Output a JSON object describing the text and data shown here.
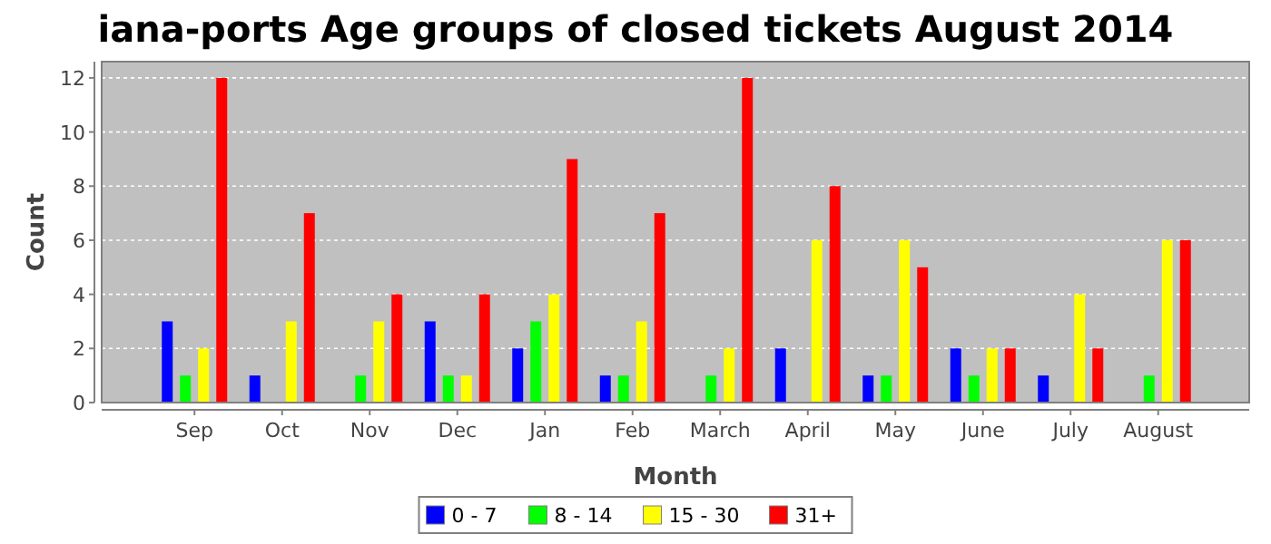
{
  "chart_data": {
    "type": "bar",
    "title": "iana-ports Age groups of closed tickets August 2014",
    "xlabel": "Month",
    "ylabel": "Count",
    "categories": [
      "Sep",
      "Oct",
      "Nov",
      "Dec",
      "Jan",
      "Feb",
      "March",
      "April",
      "May",
      "June",
      "July",
      "August"
    ],
    "series": [
      {
        "name": "0 - 7",
        "color": "#0000ff",
        "values": [
          3,
          1,
          0,
          3,
          2,
          1,
          0,
          2,
          1,
          2,
          1,
          0
        ]
      },
      {
        "name": "8 - 14",
        "color": "#00ff00",
        "values": [
          1,
          0,
          1,
          1,
          3,
          1,
          1,
          0,
          1,
          1,
          0,
          1
        ]
      },
      {
        "name": "15 - 30",
        "color": "#ffff00",
        "values": [
          2,
          3,
          3,
          1,
          4,
          3,
          2,
          6,
          6,
          2,
          4,
          6
        ]
      },
      {
        "name": "31+",
        "color": "#ff0000",
        "values": [
          12,
          7,
          4,
          4,
          9,
          7,
          12,
          8,
          5,
          2,
          2,
          6
        ]
      }
    ],
    "ylim": [
      0,
      12.6
    ],
    "yticks": [
      0,
      2,
      4,
      6,
      8,
      10,
      12
    ],
    "grid": "y",
    "legend": "bottom"
  }
}
